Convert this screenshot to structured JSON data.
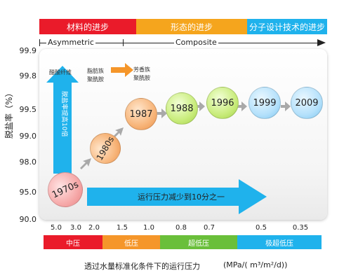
{
  "header_bands": [
    {
      "label": "材料的进步",
      "color": "#ea1b2a"
    },
    {
      "label": "形态的进步",
      "color": "#f5a51d"
    },
    {
      "label": "分子设计技术的进步",
      "color": "#1fb2ec"
    }
  ],
  "timeline": {
    "left": "Asymmetric",
    "right": "Composite"
  },
  "y_axis": {
    "label": "脱盐率（%）",
    "ticks": [
      "99.9",
      "99.8",
      "99.5",
      "99.0",
      "98.0",
      "95.0",
      "90.0"
    ]
  },
  "milestones": [
    {
      "year": "1970s"
    },
    {
      "year": "1980s"
    },
    {
      "year": "1987"
    },
    {
      "year": "1988"
    },
    {
      "year": "1996"
    },
    {
      "year": "1999"
    },
    {
      "year": "2009"
    }
  ],
  "notes": {
    "n1": "醋酸纤维",
    "n2a": "脂肪族",
    "n2b": "聚酰胺",
    "n3a": "芳香族",
    "n3b": "聚酰胺"
  },
  "vertical_arrow_label": "脱盐率提高10倍",
  "horizontal_arrow_label": "运行压力减少到10分之一",
  "x_ticks": [
    "5.0",
    "3.0",
    "2.0",
    "1.5",
    "1.0",
    "0.8",
    "0.7",
    "0.5",
    "0.35"
  ],
  "pressure_bands": [
    {
      "label": "中压",
      "color": "#ea1b2a"
    },
    {
      "label": "低压",
      "color": "#f5962a"
    },
    {
      "label": "超低压",
      "color": "#6abf3a"
    },
    {
      "label": "极超低压",
      "color": "#1fb2ec"
    }
  ],
  "x_caption": "透过水量标准化条件下的运行压力",
  "x_unit": "(MPa/( m³/m²/d))",
  "colors": {
    "arrow_blue": "#1fb2ec",
    "arrow_gray": "#a9a9a9",
    "arrow_orange": "#f5962a"
  }
}
